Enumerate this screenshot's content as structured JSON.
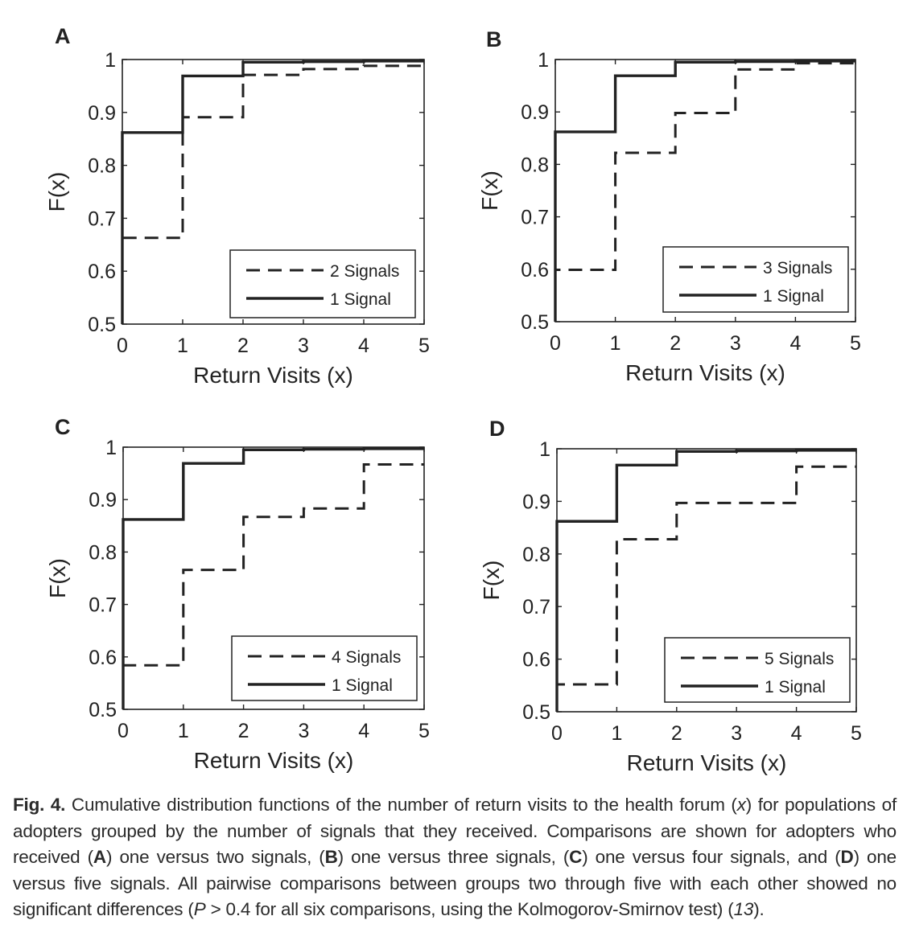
{
  "chart_data": [
    {
      "type": "line",
      "panel_label": "A",
      "xlabel": "Return Visits (x)",
      "ylabel": "F(x)",
      "xlim": [
        0,
        5
      ],
      "ylim": [
        0.5,
        1
      ],
      "xticks": [
        "0",
        "1",
        "2",
        "3",
        "4",
        "5"
      ],
      "yticks": [
        "0.5",
        "0.6",
        "0.7",
        "0.8",
        "0.9",
        "1"
      ],
      "legend_position": "bottom-right",
      "series": [
        {
          "name": "2 Signals",
          "style": "dashed",
          "x": [
            0,
            1,
            2,
            3,
            4,
            5
          ],
          "y": [
            0.663,
            0.891,
            0.971,
            0.982,
            0.988,
            0.99
          ]
        },
        {
          "name": "1 Signal",
          "style": "solid",
          "x": [
            0,
            1,
            2,
            3,
            4,
            5
          ],
          "y": [
            0.862,
            0.969,
            0.995,
            0.996,
            0.997,
            0.997
          ]
        }
      ]
    },
    {
      "type": "line",
      "panel_label": "B",
      "xlabel": "Return Visits (x)",
      "ylabel": "F(x)",
      "xlim": [
        0,
        5
      ],
      "ylim": [
        0.5,
        1
      ],
      "xticks": [
        "0",
        "1",
        "2",
        "3",
        "4",
        "5"
      ],
      "yticks": [
        "0.5",
        "0.6",
        "0.7",
        "0.8",
        "0.9",
        "1"
      ],
      "legend_position": "bottom-right",
      "series": [
        {
          "name": "3 Signals",
          "style": "dashed",
          "x": [
            0,
            1,
            2,
            3,
            4,
            5
          ],
          "y": [
            0.599,
            0.822,
            0.898,
            0.981,
            0.993,
            0.995
          ]
        },
        {
          "name": "1 Signal",
          "style": "solid",
          "x": [
            0,
            1,
            2,
            3,
            4,
            5
          ],
          "y": [
            0.862,
            0.969,
            0.995,
            0.996,
            0.997,
            0.997
          ]
        }
      ]
    },
    {
      "type": "line",
      "panel_label": "C",
      "xlabel": "Return Visits (x)",
      "ylabel": "F(x)",
      "xlim": [
        0,
        5
      ],
      "ylim": [
        0.5,
        1
      ],
      "xticks": [
        "0",
        "1",
        "2",
        "3",
        "4",
        "5"
      ],
      "yticks": [
        "0.5",
        "0.6",
        "0.7",
        "0.8",
        "0.9",
        "1"
      ],
      "legend_position": "bottom-right",
      "series": [
        {
          "name": "4 Signals",
          "style": "dashed",
          "x": [
            0,
            1,
            2,
            3,
            4,
            5
          ],
          "y": [
            0.584,
            0.766,
            0.867,
            0.883,
            0.967,
            0.967
          ]
        },
        {
          "name": "1 Signal",
          "style": "solid",
          "x": [
            0,
            1,
            2,
            3,
            4,
            5
          ],
          "y": [
            0.862,
            0.969,
            0.995,
            0.996,
            0.997,
            0.997
          ]
        }
      ]
    },
    {
      "type": "line",
      "panel_label": "D",
      "xlabel": "Return Visits (x)",
      "ylabel": "F(x)",
      "xlim": [
        0,
        5
      ],
      "ylim": [
        0.5,
        1
      ],
      "xticks": [
        "0",
        "1",
        "2",
        "3",
        "4",
        "5"
      ],
      "yticks": [
        "0.5",
        "0.6",
        "0.7",
        "0.8",
        "0.9",
        "1"
      ],
      "legend_position": "bottom-right",
      "series": [
        {
          "name": "5 Signals",
          "style": "dashed",
          "x": [
            0,
            1,
            2,
            3,
            4,
            5
          ],
          "y": [
            0.552,
            0.828,
            0.897,
            0.897,
            0.966,
            0.966
          ]
        },
        {
          "name": "1 Signal",
          "style": "solid",
          "x": [
            0,
            1,
            2,
            3,
            4,
            5
          ],
          "y": [
            0.862,
            0.969,
            0.995,
            0.996,
            0.997,
            0.997
          ]
        }
      ]
    }
  ],
  "caption": {
    "label": "Fig. 4.",
    "t1": " Cumulative distribution functions of the number of return visits to the health forum (",
    "var_x": "x",
    "t2": ") for populations of adopters grouped by the number of signals that they received. Comparisons are shown for adopters who received (",
    "ref_a": "A",
    "t3": ") one versus two signals, (",
    "ref_b": "B",
    "t4": ") one versus three signals, (",
    "ref_c": "C",
    "t5": ") one versus four signals, and (",
    "ref_d": "D",
    "t6": ") one versus five signals. All pairwise comparisons between groups two through five with each other showed no significant differences (",
    "var_p": "P",
    "t7": " > 0.4 for all six comparisons, using the Kolmogorov-Smirnov test) (",
    "ref_13": "13",
    "t8": ")."
  }
}
